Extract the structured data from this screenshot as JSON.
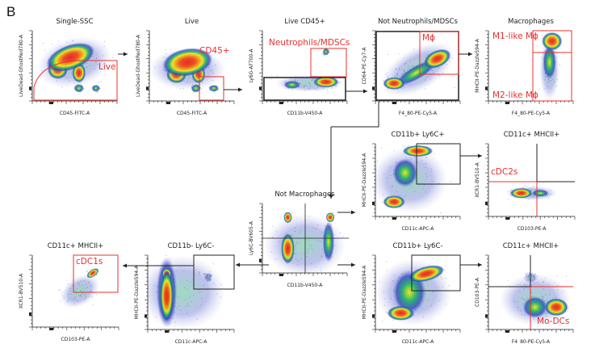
{
  "panel_label": "B",
  "colors": {
    "gate_red": "#e8302e",
    "gate_black": "#222222",
    "density": [
      "#e8221e",
      "#f7a21b",
      "#f2e61c",
      "#22b36b",
      "#2f3fbf"
    ]
  },
  "plots": [
    {
      "title": "Single-SSC",
      "xlabel": "CD45-FITC-A",
      "ylabel": "LiveDead-GhostRed780-A",
      "gates": [
        "Live"
      ]
    },
    {
      "title": "Live",
      "xlabel": "CD45-FITC-A",
      "ylabel": "LiveDead-GhostRed780-A",
      "gates": [
        "CD45+"
      ]
    },
    {
      "title": "Live CD45+",
      "xlabel": "CD11b-V450-A",
      "ylabel": "Ly6G-AF700-A",
      "gates": [
        "Neutrophils/MDSCs"
      ]
    },
    {
      "title": "Not Neutrophils/MDSCs",
      "xlabel": "F4_80-PE-Cy5-A",
      "ylabel": "CD64-PE-Cy7-A",
      "gates": [
        "Mϕ"
      ]
    },
    {
      "title": "Macrophages",
      "xlabel": "F4_80-PE-Cy5-A",
      "ylabel": "MHCII-PE-Dazzle594-A",
      "gates": [
        "M1-like Mϕ",
        "M2-like Mϕ"
      ]
    },
    {
      "title": "Not Macrophages",
      "xlabel": "CD11b-V450-A",
      "ylabel": "Ly6C-BV605-A",
      "gates": []
    },
    {
      "title": "CD11b+ Ly6C+",
      "xlabel": "CD11c-APC-A",
      "ylabel": "MHCII-PE-Dazzle594-A",
      "gates": []
    },
    {
      "title": "CD11c+ MHCII+",
      "xlabel": "CD103-PE-A",
      "ylabel": "XCR1-BV510-A",
      "gates": [
        "cDC2s"
      ]
    },
    {
      "title": "CD11b+ Ly6C-",
      "xlabel": "CD11c-APC-A",
      "ylabel": "MHCII-PE-Dazzle594-A",
      "gates": []
    },
    {
      "title": "CD11c+ MHCII+",
      "xlabel": "F4_80-PE-Cy5-A",
      "ylabel": "CD103-PE-A",
      "gates": [
        "Mo-DCs"
      ]
    },
    {
      "title": "CD11b- Ly6C-",
      "xlabel": "CD11c-APC-A",
      "ylabel": "MHCII-PE-Dazzle594-A",
      "gates": []
    },
    {
      "title": "CD11c+ MHCII+",
      "xlabel": "CD103-PE-A",
      "ylabel": "XCR1-BV510-A",
      "gates": [
        "cDC1s"
      ]
    }
  ]
}
